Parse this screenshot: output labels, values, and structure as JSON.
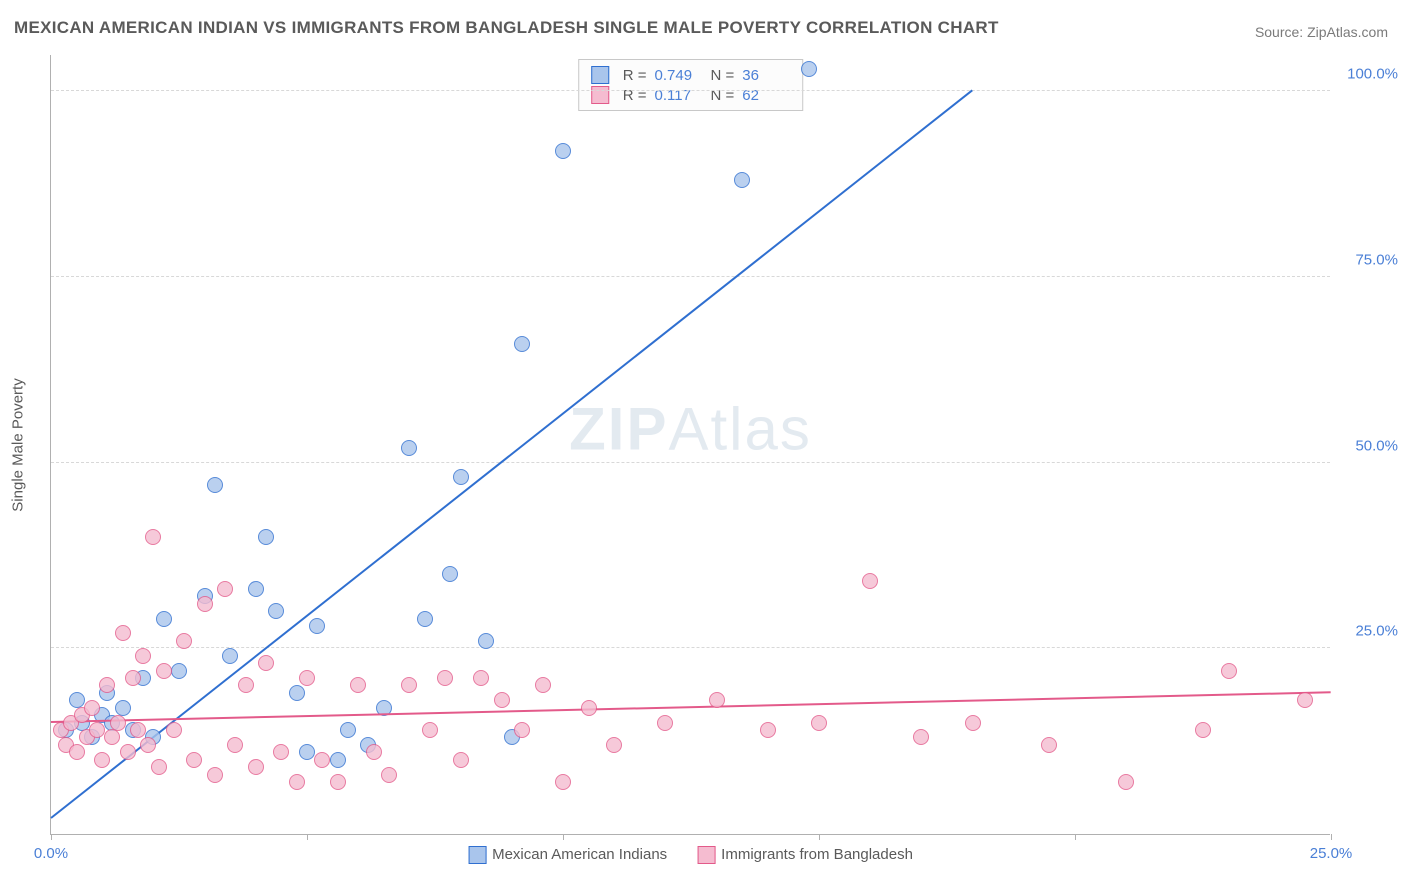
{
  "title": "MEXICAN AMERICAN INDIAN VS IMMIGRANTS FROM BANGLADESH SINGLE MALE POVERTY CORRELATION CHART",
  "source": "Source: ZipAtlas.com",
  "y_axis_title": "Single Male Poverty",
  "watermark_a": "ZIP",
  "watermark_b": "Atlas",
  "chart": {
    "type": "scatter",
    "background_color": "#ffffff",
    "grid_color": "#d8d8d8",
    "axis_color": "#b0b0b0",
    "tick_label_color": "#4a7fd6",
    "tick_fontsize": 15,
    "xlim": [
      0,
      25
    ],
    "ylim": [
      0,
      105
    ],
    "x_ticks": [
      0,
      5,
      10,
      15,
      20,
      25
    ],
    "x_tick_labels": {
      "0": "0.0%",
      "25": "25.0%"
    },
    "y_ticks": [
      25,
      50,
      75,
      100
    ],
    "y_tick_labels": {
      "25": "25.0%",
      "50": "50.0%",
      "75": "75.0%",
      "100": "100.0%"
    },
    "marker_radius": 8,
    "marker_fill_opacity": 0.45,
    "marker_stroke_width": 1.2,
    "trend_line_width": 2,
    "series": [
      {
        "name": "Mexican American Indians",
        "color_stroke": "#2f6fd0",
        "color_fill": "#a9c5ec",
        "R": "0.749",
        "N": "36",
        "trend": {
          "x1": 0,
          "y1": 2,
          "x2": 18,
          "y2": 100
        },
        "points": [
          [
            0.3,
            14
          ],
          [
            0.5,
            18
          ],
          [
            0.6,
            15
          ],
          [
            0.8,
            13
          ],
          [
            1.0,
            16
          ],
          [
            1.1,
            19
          ],
          [
            1.2,
            15
          ],
          [
            1.4,
            17
          ],
          [
            1.6,
            14
          ],
          [
            1.8,
            21
          ],
          [
            2.0,
            13
          ],
          [
            2.2,
            29
          ],
          [
            2.5,
            22
          ],
          [
            3.0,
            32
          ],
          [
            3.2,
            47
          ],
          [
            3.5,
            24
          ],
          [
            4.0,
            33
          ],
          [
            4.2,
            40
          ],
          [
            4.4,
            30
          ],
          [
            4.8,
            19
          ],
          [
            5.0,
            11
          ],
          [
            5.2,
            28
          ],
          [
            5.8,
            14
          ],
          [
            6.2,
            12
          ],
          [
            6.5,
            17
          ],
          [
            7.0,
            52
          ],
          [
            7.3,
            29
          ],
          [
            7.8,
            35
          ],
          [
            8.0,
            48
          ],
          [
            8.5,
            26
          ],
          [
            9.0,
            13
          ],
          [
            9.2,
            66
          ],
          [
            10.0,
            92
          ],
          [
            13.5,
            88
          ],
          [
            14.8,
            103
          ],
          [
            5.6,
            10
          ]
        ]
      },
      {
        "name": "Immigrants from Bangladesh",
        "color_stroke": "#e35a8a",
        "color_fill": "#f5bcd0",
        "R": "0.117",
        "N": "62",
        "trend": {
          "x1": 0,
          "y1": 15,
          "x2": 25,
          "y2": 19
        },
        "points": [
          [
            0.2,
            14
          ],
          [
            0.3,
            12
          ],
          [
            0.4,
            15
          ],
          [
            0.5,
            11
          ],
          [
            0.6,
            16
          ],
          [
            0.7,
            13
          ],
          [
            0.8,
            17
          ],
          [
            0.9,
            14
          ],
          [
            1.0,
            10
          ],
          [
            1.1,
            20
          ],
          [
            1.2,
            13
          ],
          [
            1.3,
            15
          ],
          [
            1.4,
            27
          ],
          [
            1.5,
            11
          ],
          [
            1.6,
            21
          ],
          [
            1.7,
            14
          ],
          [
            1.8,
            24
          ],
          [
            1.9,
            12
          ],
          [
            2.0,
            40
          ],
          [
            2.1,
            9
          ],
          [
            2.2,
            22
          ],
          [
            2.4,
            14
          ],
          [
            2.6,
            26
          ],
          [
            2.8,
            10
          ],
          [
            3.0,
            31
          ],
          [
            3.2,
            8
          ],
          [
            3.4,
            33
          ],
          [
            3.6,
            12
          ],
          [
            3.8,
            20
          ],
          [
            4.0,
            9
          ],
          [
            4.2,
            23
          ],
          [
            4.5,
            11
          ],
          [
            4.8,
            7
          ],
          [
            5.0,
            21
          ],
          [
            5.3,
            10
          ],
          [
            5.6,
            7
          ],
          [
            6.0,
            20
          ],
          [
            6.3,
            11
          ],
          [
            6.6,
            8
          ],
          [
            7.0,
            20
          ],
          [
            7.4,
            14
          ],
          [
            7.7,
            21
          ],
          [
            8.0,
            10
          ],
          [
            8.4,
            21
          ],
          [
            8.8,
            18
          ],
          [
            9.2,
            14
          ],
          [
            9.6,
            20
          ],
          [
            10.0,
            7
          ],
          [
            10.5,
            17
          ],
          [
            11.0,
            12
          ],
          [
            12.0,
            15
          ],
          [
            13.0,
            18
          ],
          [
            14.0,
            14
          ],
          [
            15.0,
            15
          ],
          [
            16.0,
            34
          ],
          [
            17.0,
            13
          ],
          [
            18.0,
            15
          ],
          [
            19.5,
            12
          ],
          [
            21.0,
            7
          ],
          [
            22.5,
            14
          ],
          [
            23.0,
            22
          ],
          [
            24.5,
            18
          ]
        ]
      }
    ]
  },
  "legend": {
    "r_label": "R =",
    "n_label": "N ="
  }
}
